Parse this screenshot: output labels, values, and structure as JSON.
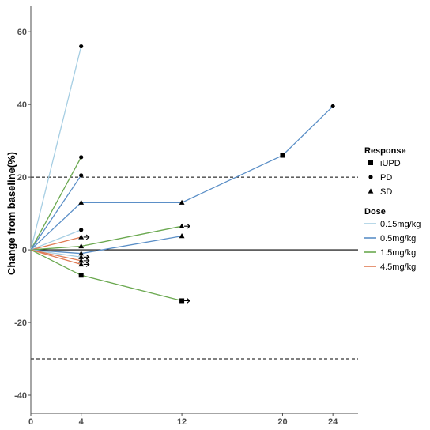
{
  "chart_data": {
    "type": "line",
    "title": "",
    "xlabel": "",
    "ylabel": "Change from baseline(%)",
    "xlim": [
      0,
      26
    ],
    "ylim": [
      -45,
      67
    ],
    "x_ticks": [
      0,
      4,
      12,
      20,
      24
    ],
    "y_ticks": [
      -40,
      -20,
      0,
      20,
      40,
      60
    ],
    "reference_lines": [
      {
        "y": 0,
        "style": "solid"
      },
      {
        "y": 20,
        "style": "dashed"
      },
      {
        "y": -30,
        "style": "dashed"
      }
    ],
    "dose_colors": {
      "0.15mg/kg": "#a6cee3",
      "0.5mg/kg": "#5b8fc7",
      "1.5mg/kg": "#6aa84f",
      "4.5mg/kg": "#e07b54"
    },
    "series": [
      {
        "dose": "0.15mg/kg",
        "points": [
          {
            "x": 0,
            "y": 0
          },
          {
            "x": 4,
            "y": 56,
            "r": "PD"
          }
        ]
      },
      {
        "dose": "1.5mg/kg",
        "points": [
          {
            "x": 0,
            "y": 0
          },
          {
            "x": 4,
            "y": 25.5,
            "r": "PD"
          }
        ]
      },
      {
        "dose": "0.5mg/kg",
        "points": [
          {
            "x": 0,
            "y": 0
          },
          {
            "x": 4,
            "y": 20.5,
            "r": "PD"
          }
        ]
      },
      {
        "dose": "0.5mg/kg",
        "points": [
          {
            "x": 0,
            "y": 0
          },
          {
            "x": 4,
            "y": 13,
            "r": "SD"
          },
          {
            "x": 12,
            "y": 13,
            "r": "SD"
          },
          {
            "x": 20,
            "y": 26,
            "r": "iUPD"
          },
          {
            "x": 24,
            "y": 39.5,
            "r": "PD"
          }
        ]
      },
      {
        "dose": "0.15mg/kg",
        "points": [
          {
            "x": 0,
            "y": 0
          },
          {
            "x": 4,
            "y": 5.5,
            "r": "PD"
          }
        ]
      },
      {
        "dose": "4.5mg/kg",
        "points": [
          {
            "x": 0,
            "y": 0
          },
          {
            "x": 4,
            "y": 3.5,
            "r": "SD",
            "ongoing": true
          }
        ]
      },
      {
        "dose": "1.5mg/kg",
        "points": [
          {
            "x": 0,
            "y": 0
          },
          {
            "x": 4,
            "y": 1,
            "r": "SD"
          },
          {
            "x": 12,
            "y": 6.5,
            "r": "SD",
            "ongoing": true
          }
        ]
      },
      {
        "dose": "0.5mg/kg",
        "points": [
          {
            "x": 0,
            "y": 0
          },
          {
            "x": 4,
            "y": -1,
            "r": "SD"
          },
          {
            "x": 12,
            "y": 3.8,
            "r": "SD"
          }
        ]
      },
      {
        "dose": "0.15mg/kg",
        "points": [
          {
            "x": 0,
            "y": 0
          },
          {
            "x": 4,
            "y": -2,
            "r": "SD",
            "ongoing": true
          }
        ]
      },
      {
        "dose": "4.5mg/kg",
        "points": [
          {
            "x": 0,
            "y": 0
          },
          {
            "x": 4,
            "y": -3,
            "r": "SD",
            "ongoing": true
          }
        ]
      },
      {
        "dose": "4.5mg/kg",
        "points": [
          {
            "x": 0,
            "y": 0
          },
          {
            "x": 4,
            "y": -4,
            "r": "SD",
            "ongoing": true
          }
        ]
      },
      {
        "dose": "1.5mg/kg",
        "points": [
          {
            "x": 0,
            "y": 0
          },
          {
            "x": 4,
            "y": -7,
            "r": "iUPD"
          },
          {
            "x": 12,
            "y": -14,
            "r": "iUPD",
            "ongoing": true
          }
        ]
      }
    ],
    "legend": {
      "placement": "right",
      "response_title": "Response",
      "response_items": [
        {
          "label": "iUPD",
          "shape": "square"
        },
        {
          "label": "PD",
          "shape": "circle"
        },
        {
          "label": "SD",
          "shape": "triangle"
        }
      ],
      "dose_title": "Dose",
      "dose_items": [
        {
          "label": "0.15mg/kg",
          "color": "#a6cee3"
        },
        {
          "label": "0.5mg/kg",
          "color": "#5b8fc7"
        },
        {
          "label": "1.5mg/kg",
          "color": "#6aa84f"
        },
        {
          "label": "4.5mg/kg",
          "color": "#e07b54"
        }
      ]
    }
  }
}
